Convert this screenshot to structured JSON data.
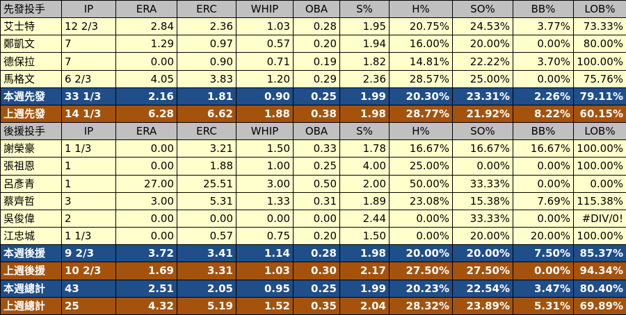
{
  "starters": {
    "header": [
      "先發投手",
      "IP",
      "ERA",
      "ERC",
      "WHIP",
      "OBA",
      "S%",
      "H%",
      "SO%",
      "BB%",
      "LOB%"
    ],
    "rows": [
      [
        "艾士特",
        "12 2/3",
        "2.84",
        "2.36",
        "1.03",
        "0.28",
        "1.95",
        "20.75%",
        "24.53%",
        "3.77%",
        "73.33%"
      ],
      [
        "鄭凱文",
        "7",
        "1.29",
        "0.97",
        "0.57",
        "0.20",
        "1.94",
        "16.00%",
        "20.00%",
        "0.00%",
        "80.00%"
      ],
      [
        "德保拉",
        "7",
        "0.00",
        "0.90",
        "0.71",
        "0.19",
        "1.82",
        "14.81%",
        "22.22%",
        "3.70%",
        "100.00%"
      ],
      [
        "馬格文",
        "6 2/3",
        "4.05",
        "3.83",
        "1.20",
        "0.29",
        "2.36",
        "28.57%",
        "25.00%",
        "0.00%",
        "75.76%"
      ]
    ],
    "this_week": [
      "本週先發",
      "33 1/3",
      "2.16",
      "1.81",
      "0.90",
      "0.25",
      "1.99",
      "20.30%",
      "23.31%",
      "2.26%",
      "79.11%"
    ],
    "last_week": [
      "上週先發",
      "14 1/3",
      "6.28",
      "6.62",
      "1.88",
      "0.38",
      "1.98",
      "28.77%",
      "21.92%",
      "8.22%",
      "60.15%"
    ]
  },
  "relievers": {
    "header": [
      "後援投手",
      "IP",
      "ERA",
      "ERC",
      "WHIP",
      "OBA",
      "S%",
      "H%",
      "SO%",
      "BB%",
      "LOB%"
    ],
    "rows": [
      [
        "謝榮豪",
        "1 1/3",
        "0.00",
        "3.21",
        "1.50",
        "0.33",
        "1.78",
        "16.67%",
        "16.67%",
        "16.67%",
        "100.00%"
      ],
      [
        "張祖恩",
        "1",
        "0.00",
        "1.88",
        "1.00",
        "0.25",
        "4.00",
        "25.00%",
        "0.00%",
        "0.00%",
        "100.00%"
      ],
      [
        "呂彥青",
        "1",
        "27.00",
        "25.51",
        "3.00",
        "0.50",
        "2.00",
        "50.00%",
        "33.33%",
        "0.00%",
        "0.00%"
      ],
      [
        "蔡齊哲",
        "3",
        "3.00",
        "5.31",
        "1.33",
        "0.31",
        "1.89",
        "23.08%",
        "15.38%",
        "7.69%",
        "115.38%"
      ],
      [
        "吳俊偉",
        "2",
        "0.00",
        "0.00",
        "0.00",
        "0.00",
        "2.44",
        "0.00%",
        "33.33%",
        "0.00%",
        "#DIV/0!"
      ],
      [
        "江忠城",
        "1 1/3",
        "0.00",
        "0.57",
        "0.75",
        "0.20",
        "1.50",
        "0.00%",
        "20.00%",
        "20.00%",
        "100.00%"
      ]
    ],
    "this_week": [
      "本週後援",
      "9 2/3",
      "3.72",
      "3.41",
      "1.14",
      "0.28",
      "1.98",
      "20.00%",
      "20.00%",
      "7.50%",
      "85.37%"
    ],
    "last_week": [
      "上週後援",
      "10 2/3",
      "1.69",
      "3.31",
      "1.03",
      "0.30",
      "2.17",
      "27.50%",
      "27.50%",
      "0.00%",
      "94.34%"
    ]
  },
  "totals": {
    "this_week": [
      "本週總計",
      "43",
      "2.51",
      "2.05",
      "0.95",
      "0.25",
      "1.99",
      "20.23%",
      "22.54%",
      "3.47%",
      "80.40%"
    ],
    "last_week": [
      "上週總計",
      "25",
      "4.32",
      "5.19",
      "1.52",
      "0.35",
      "2.04",
      "28.32%",
      "23.89%",
      "5.31%",
      "69.89%"
    ]
  }
}
